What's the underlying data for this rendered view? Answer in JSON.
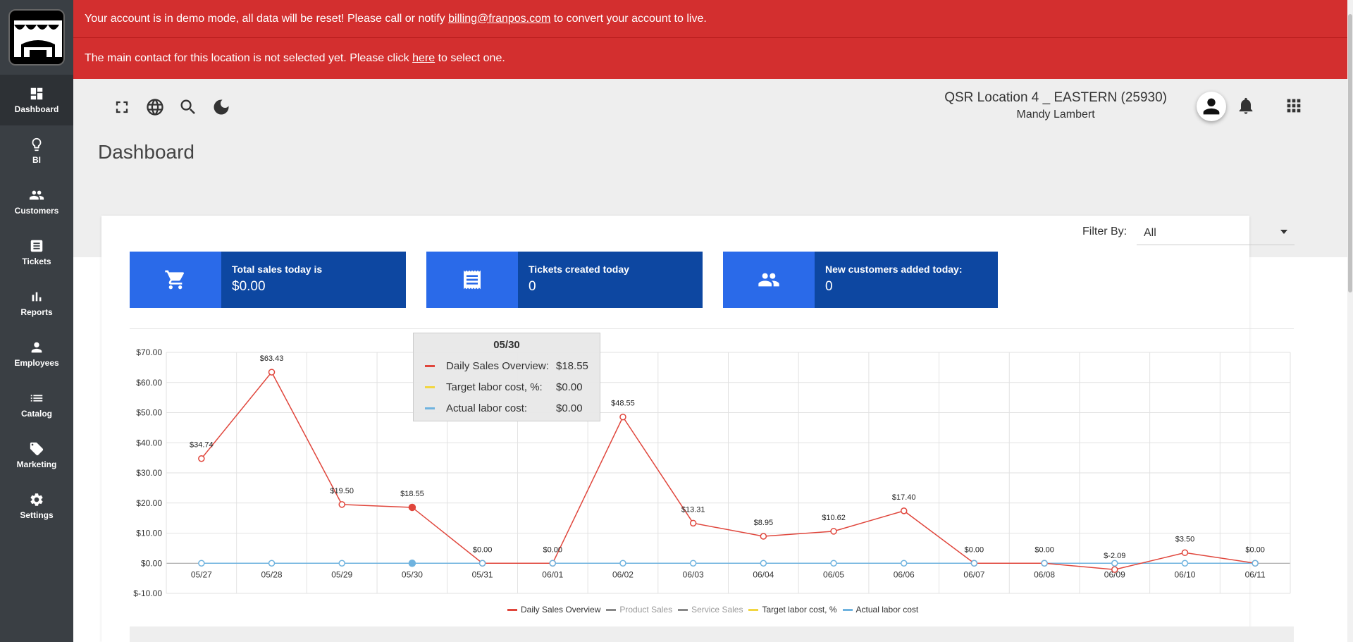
{
  "banners": {
    "demo_text": "Your account is in demo mode, all data will be reset! Please call or notify ",
    "demo_email": "billing@franpos.com",
    "demo_suffix": " to convert your account to live.",
    "contact_text": "The main contact for this location is not selected yet. Please click ",
    "contact_link": "here",
    "contact_suffix": " to select one."
  },
  "sidebar": {
    "items": [
      {
        "label": "Dashboard",
        "icon": "dashboard-icon"
      },
      {
        "label": "BI",
        "icon": "lightbulb-icon"
      },
      {
        "label": "Customers",
        "icon": "people-icon"
      },
      {
        "label": "Tickets",
        "icon": "ticket-icon"
      },
      {
        "label": "Reports",
        "icon": "bar-chart-icon"
      },
      {
        "label": "Employees",
        "icon": "person-icon"
      },
      {
        "label": "Catalog",
        "icon": "list-icon"
      },
      {
        "label": "Marketing",
        "icon": "tag-icon"
      },
      {
        "label": "Settings",
        "icon": "gear-icon"
      }
    ]
  },
  "header": {
    "location": "QSR Location 4 _ EASTERN (25930)",
    "user": "Mandy Lambert"
  },
  "page": {
    "title": "Dashboard",
    "filter_label": "Filter By:",
    "filter_value": "All"
  },
  "stats": [
    {
      "label": "Total sales today is",
      "value": "$0.00",
      "icon": "cart-icon"
    },
    {
      "label": "Tickets created today",
      "value": "0",
      "icon": "receipt-icon"
    },
    {
      "label": "New customers added today:",
      "value": "0",
      "icon": "people-icon"
    }
  ],
  "tooltip": {
    "title": "05/30",
    "rows": [
      {
        "name": "Daily Sales Overview:",
        "value": "$18.55",
        "color": "#e0463c"
      },
      {
        "name": "Target labor cost, %:",
        "value": "$0.00",
        "color": "#f2d641"
      },
      {
        "name": "Actual labor cost:",
        "value": "$0.00",
        "color": "#6fb3df"
      }
    ]
  },
  "chart_data": {
    "type": "line",
    "categories": [
      "05/27",
      "05/28",
      "05/29",
      "05/30",
      "05/31",
      "06/01",
      "06/02",
      "06/03",
      "06/04",
      "06/05",
      "06/06",
      "06/07",
      "06/08",
      "06/09",
      "06/10",
      "06/11"
    ],
    "ylim": [
      -10,
      70
    ],
    "yticks": [
      "$70.00",
      "$60.00",
      "$50.00",
      "$40.00",
      "$30.00",
      "$20.00",
      "$10.00",
      "$0.00",
      "$-10.00"
    ],
    "ytick_values": [
      70,
      60,
      50,
      40,
      30,
      20,
      10,
      0,
      -10
    ],
    "series": [
      {
        "name": "Daily Sales Overview",
        "color": "#e0463c",
        "values": [
          34.74,
          63.43,
          19.5,
          18.55,
          0,
          0,
          48.55,
          13.31,
          8.95,
          10.62,
          17.4,
          0,
          0,
          -2.09,
          3.5,
          0
        ],
        "labels": [
          "$34.74",
          "$63.43",
          "$19.50",
          "$18.55",
          "$0.00",
          "$0.00",
          "$48.55",
          "$13.31",
          "$8.95",
          "$10.62",
          "$17.40",
          "$0.00",
          "$0.00",
          "$-2.09",
          "$3.50",
          "$0.00"
        ]
      },
      {
        "name": "Actual labor cost",
        "color": "#6fb3df",
        "values": [
          0,
          0,
          0,
          0,
          0,
          0,
          0,
          0,
          0,
          0,
          0,
          0,
          0,
          0,
          0,
          0
        ]
      }
    ],
    "highlight_index": 3,
    "legend": [
      {
        "name": "Daily Sales Overview",
        "color": "#e0463c",
        "text_color": "#333"
      },
      {
        "name": "Product Sales",
        "color": "#888888",
        "text_color": "#999"
      },
      {
        "name": "Service Sales",
        "color": "#888888",
        "text_color": "#999"
      },
      {
        "name": "Target labor cost, %",
        "color": "#f2d641",
        "text_color": "#333"
      },
      {
        "name": "Actual labor cost",
        "color": "#6fb3df",
        "text_color": "#333"
      }
    ]
  }
}
